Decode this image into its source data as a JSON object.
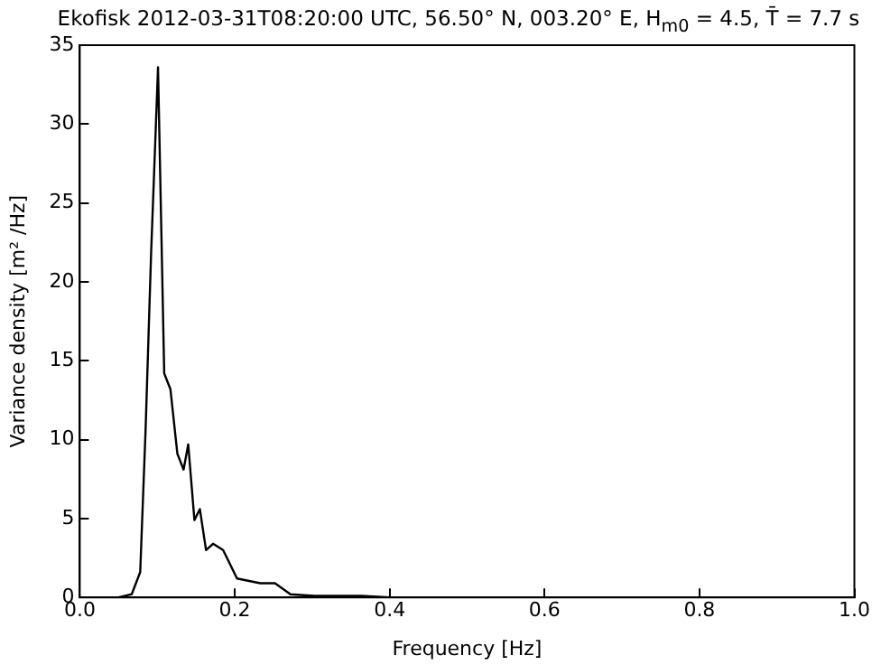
{
  "chart_data": {
    "type": "line",
    "title": "Ekofisk 2012-03-31T08:20:00 UTC,  56.50° N, 003.20° E, H$_{m0}$ =  4.5, T̄ = 7.7 s",
    "xlabel": "Frequency [Hz]",
    "ylabel": "Variance density [m² /Hz]",
    "x": [
      0,
      0.05,
      0.067,
      0.078,
      0.085,
      0.092,
      0.101,
      0.109,
      0.117,
      0.126,
      0.134,
      0.14,
      0.148,
      0.155,
      0.163,
      0.172,
      0.185,
      0.203,
      0.233,
      0.252,
      0.272,
      0.303,
      0.364,
      0.4,
      0.5,
      0.6,
      0.7,
      0.8,
      0.9,
      1.0
    ],
    "series": [
      {
        "color": "#000000",
        "values": [
          0,
          0,
          0.2,
          1.6,
          10.7,
          21.7,
          33.6,
          14.2,
          13.2,
          9.1,
          8.1,
          9.7,
          4.9,
          5.6,
          3.0,
          3.4,
          3.0,
          1.2,
          0.9,
          0.9,
          0.2,
          0.1,
          0.1,
          0,
          0,
          0,
          0,
          0,
          0,
          0
        ]
      }
    ],
    "xlim": [
      0,
      1
    ],
    "ylim": [
      0,
      35
    ],
    "xticks": [
      {
        "value": 0,
        "label": "0.0"
      },
      {
        "value": 0.2,
        "label": "0.2"
      },
      {
        "value": 0.4,
        "label": "0.4"
      },
      {
        "value": 0.6,
        "label": "0.6"
      },
      {
        "value": 0.8,
        "label": "0.8"
      },
      {
        "value": 1,
        "label": "1.0"
      }
    ],
    "yticks": [
      0,
      5,
      10,
      15,
      20,
      25,
      30,
      35
    ],
    "grid": false,
    "legend": false,
    "marker": "none",
    "line_style": "solid"
  }
}
